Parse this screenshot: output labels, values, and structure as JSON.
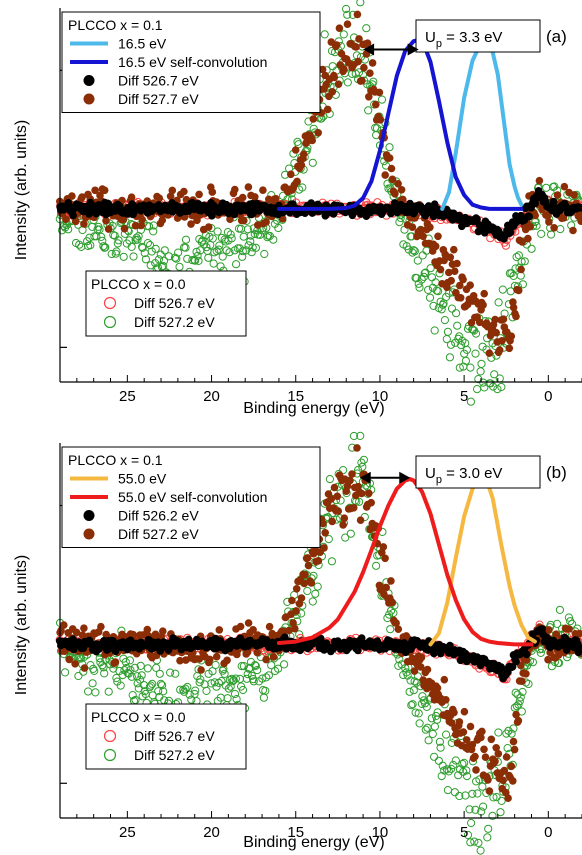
{
  "chart_data": [
    {
      "type": "line",
      "panel_label": "(a)",
      "xlabel": "Binding energy (eV)",
      "ylabel": "Intensity (arb. units)",
      "x_reversed": true,
      "xlim": [
        29,
        -2
      ],
      "ylim": [
        -1.25,
        1.45
      ],
      "x_ticks": [
        25,
        20,
        15,
        10,
        5,
        0
      ],
      "x_tick_labels": [
        "25",
        "20",
        "15",
        "10",
        "5",
        "0"
      ],
      "annotation": {
        "text": "U",
        "subscript": "p",
        "rest": " = 3.3 eV",
        "arrow_from_x": 11.0,
        "arrow_to_x": 7.7,
        "arrow_y": 1.15
      },
      "legend_top": {
        "title": "PLCCO x = 0.1",
        "entries": [
          {
            "label": "16.5 eV",
            "kind": "line",
            "color": "#4db8ea"
          },
          {
            "label": "16.5 eV self-convolution",
            "kind": "line",
            "color": "#1414d2"
          },
          {
            "label": "Diff 526.7 eV",
            "kind": "filled",
            "color": "#000000"
          },
          {
            "label": "Diff 527.7 eV",
            "kind": "filled",
            "color": "#8b2e06"
          }
        ]
      },
      "legend_bottom": {
        "title": "PLCCO x = 0.0",
        "entries": [
          {
            "label": "Diff 526.7 eV",
            "kind": "open",
            "color": "#ff4040"
          },
          {
            "label": "Diff 527.2 eV",
            "kind": "open",
            "color": "#2e9e2e"
          }
        ]
      },
      "series": [
        {
          "name": "16.5 eV",
          "kind": "line",
          "color": "#4db8ea",
          "x": [
            6.3,
            5.9,
            5.5,
            5.0,
            4.5,
            4.0,
            3.7,
            3.4,
            3.0,
            2.6,
            2.3,
            2.0,
            1.8,
            1.6
          ],
          "y": [
            0.0,
            0.12,
            0.4,
            0.8,
            1.07,
            1.2,
            1.22,
            1.18,
            0.97,
            0.6,
            0.32,
            0.16,
            0.08,
            0.03
          ]
        },
        {
          "name": "16.5 eV self-convolution",
          "kind": "line",
          "color": "#1414d2",
          "x": [
            16,
            14,
            13,
            12,
            11.5,
            11,
            10.5,
            10,
            9.5,
            9,
            8.5,
            8,
            7.7,
            7.4,
            7,
            6.5,
            6,
            5.5,
            5,
            4.5,
            4,
            3.5,
            3,
            2.5,
            2,
            1.6
          ],
          "y": [
            0,
            0,
            0,
            0.006,
            0.024,
            0.078,
            0.2,
            0.42,
            0.69,
            0.96,
            1.14,
            1.21,
            1.22,
            1.19,
            1.06,
            0.78,
            0.48,
            0.23,
            0.1,
            0.03,
            0.01,
            0,
            0,
            0,
            0,
            0
          ]
        },
        {
          "name": "Diff 526.7 eV",
          "kind": "filled",
          "color": "#000000",
          "noise": 0.03,
          "x": [
            29,
            25,
            20,
            15,
            12,
            10,
            8,
            6,
            5,
            4,
            3,
            2.6,
            2.2,
            1.8,
            1.2,
            0.8,
            0.5,
            0.2,
            0,
            -0.5,
            -1,
            -2
          ],
          "y": [
            0,
            0,
            0,
            0,
            0,
            0,
            0,
            -0.04,
            -0.08,
            -0.12,
            -0.17,
            -0.22,
            -0.15,
            -0.08,
            -0.02,
            0.05,
            0.12,
            0.05,
            0.02,
            0.01,
            0.01,
            0
          ]
        },
        {
          "name": "Diff 527.7 eV",
          "kind": "filled",
          "color": "#8b2e06",
          "noise": 0.09,
          "x": [
            29,
            25,
            20,
            18,
            17,
            16,
            15.5,
            15,
            14,
            13,
            12,
            11.3,
            11,
            10.5,
            10,
            9.5,
            9,
            8.5,
            8,
            7,
            6,
            5,
            4,
            3.5,
            3,
            2.5,
            2,
            1.7,
            1.4,
            1.0,
            0.5,
            0,
            -1,
            -2
          ],
          "y": [
            0,
            0,
            0,
            0,
            0,
            0.03,
            0.1,
            0.26,
            0.62,
            0.92,
            1.13,
            1.17,
            1.1,
            0.9,
            0.6,
            0.32,
            0.12,
            0.0,
            -0.08,
            -0.22,
            -0.42,
            -0.62,
            -0.72,
            -0.8,
            -0.88,
            -0.95,
            -0.8,
            -0.4,
            -0.15,
            -0.03,
            0.1,
            0.02,
            0.01,
            0
          ]
        },
        {
          "name": "Diff 526.7 eV (x = 0.0)",
          "kind": "open",
          "color": "#ff4040",
          "noise": 0.03,
          "x": [
            29,
            25,
            20,
            15,
            12,
            10,
            8,
            6,
            5,
            4,
            3,
            2.6,
            2.2,
            1.8,
            1.2,
            0.8,
            0.5,
            0.2,
            0,
            -0.5,
            -1,
            -2
          ],
          "y": [
            0,
            0,
            0,
            0,
            0,
            0,
            0,
            -0.05,
            -0.09,
            -0.13,
            -0.18,
            -0.23,
            -0.16,
            -0.09,
            -0.03,
            0.04,
            0.11,
            0.04,
            0.02,
            0.01,
            0.01,
            0
          ]
        },
        {
          "name": "Diff 527.2 eV (x = 0.0)",
          "kind": "open",
          "color": "#2e9e2e",
          "noise": 0.13,
          "x": [
            29,
            28,
            26,
            24,
            22.5,
            21,
            20,
            18.5,
            17,
            16,
            15.5,
            15,
            14,
            13,
            12,
            11.3,
            11,
            10.5,
            10,
            9.5,
            9,
            8,
            7,
            6,
            5,
            4.5,
            4,
            3.5,
            3,
            2.5,
            2,
            1.6,
            1.2,
            0.8,
            0.4,
            0,
            -1,
            -2
          ],
          "y": [
            0,
            -0.1,
            -0.15,
            -0.2,
            -0.45,
            -0.35,
            -0.25,
            -0.3,
            -0.18,
            -0.05,
            0.06,
            0.22,
            0.6,
            0.92,
            1.15,
            1.2,
            1.14,
            0.92,
            0.6,
            0.3,
            0.05,
            -0.35,
            -0.55,
            -0.75,
            -0.95,
            -1.05,
            -1.12,
            -1.08,
            -0.98,
            -0.85,
            -0.5,
            -0.3,
            -0.12,
            -0.02,
            0.1,
            0.02,
            0.01,
            0
          ]
        }
      ]
    },
    {
      "type": "line",
      "panel_label": "(b)",
      "xlabel": "Binding energy (eV)",
      "ylabel": "Intensity (arb. units)",
      "x_reversed": true,
      "xlim": [
        29,
        -2
      ],
      "ylim": [
        -1.25,
        1.45
      ],
      "x_ticks": [
        25,
        20,
        15,
        10,
        5,
        0
      ],
      "x_tick_labels": [
        "25",
        "20",
        "15",
        "10",
        "5",
        "0"
      ],
      "annotation": {
        "text": "U",
        "subscript": "p",
        "rest": " = 3.0 eV",
        "arrow_from_x": 11.2,
        "arrow_to_x": 8.2,
        "arrow_y": 1.2
      },
      "legend_top": {
        "title": "PLCCO   x = 0.1",
        "entries": [
          {
            "label": "55.0 eV",
            "kind": "line",
            "color": "#f5b840"
          },
          {
            "label": "55.0 eV self-convolution",
            "kind": "line",
            "color": "#ee1c1c"
          },
          {
            "label": "Diff 526.2 eV",
            "kind": "filled",
            "color": "#000000"
          },
          {
            "label": "Diff 527.2 eV",
            "kind": "filled",
            "color": "#8b2e06"
          }
        ]
      },
      "legend_bottom": {
        "title": "PLCCO x = 0.0",
        "entries": [
          {
            "label": "Diff 526.7 eV",
            "kind": "open",
            "color": "#ff4040"
          },
          {
            "label": "Diff 527.2 eV",
            "kind": "open",
            "color": "#2e9e2e"
          }
        ]
      },
      "series": [
        {
          "name": "55.0 eV",
          "kind": "line",
          "color": "#f5b840",
          "x": [
            7.0,
            6.5,
            6.0,
            5.5,
            5.0,
            4.5,
            4.0,
            3.7,
            3.3,
            2.8,
            2.3,
            2.0,
            1.6,
            1.2,
            0.8
          ],
          "y": [
            0.0,
            0.08,
            0.3,
            0.62,
            0.92,
            1.12,
            1.2,
            1.2,
            1.05,
            0.72,
            0.42,
            0.28,
            0.14,
            0.05,
            0.02
          ]
        },
        {
          "name": "55.0 eV self-convolution",
          "kind": "line",
          "color": "#ee1c1c",
          "x": [
            16,
            15,
            14,
            13,
            12.5,
            12,
            11.5,
            11,
            10.5,
            10,
            9.5,
            9,
            8.5,
            8.2,
            8,
            7.5,
            7,
            6.5,
            6,
            5.5,
            5,
            4.5,
            4,
            3.5,
            3,
            2,
            1
          ],
          "y": [
            0.01,
            0.02,
            0.05,
            0.12,
            0.18,
            0.28,
            0.38,
            0.52,
            0.68,
            0.85,
            1.0,
            1.12,
            1.18,
            1.19,
            1.18,
            1.1,
            0.94,
            0.72,
            0.5,
            0.32,
            0.18,
            0.09,
            0.04,
            0.02,
            0.01,
            0,
            0
          ]
        },
        {
          "name": "Diff 526.2 eV",
          "kind": "filled",
          "color": "#000000",
          "noise": 0.03,
          "x": [
            29,
            25,
            20,
            15,
            12,
            10,
            8,
            6,
            5,
            4,
            3,
            2.6,
            2.2,
            1.8,
            1.2,
            0.8,
            0.5,
            0.2,
            0,
            -0.5,
            -1,
            -2
          ],
          "y": [
            0,
            0,
            0,
            0,
            0,
            0,
            0,
            -0.04,
            -0.08,
            -0.12,
            -0.17,
            -0.22,
            -0.15,
            -0.08,
            -0.02,
            0.05,
            0.12,
            0.05,
            0.02,
            0.01,
            0.01,
            0
          ]
        },
        {
          "name": "Diff 527.2 eV",
          "kind": "filled",
          "color": "#8b2e06",
          "noise": 0.09,
          "x": [
            29,
            25,
            20,
            18,
            17,
            16,
            15.5,
            15,
            14,
            13,
            12,
            11.3,
            11,
            10.5,
            10,
            9.5,
            9,
            8.5,
            8,
            7,
            6,
            5,
            4,
            3.5,
            3,
            2.5,
            2,
            1.7,
            1.4,
            1.0,
            0.5,
            0,
            -1,
            -2
          ],
          "y": [
            0,
            0,
            -0.05,
            0,
            0,
            0.03,
            0.1,
            0.28,
            0.62,
            0.92,
            1.1,
            1.15,
            1.1,
            0.92,
            0.62,
            0.34,
            0.14,
            0.0,
            -0.1,
            -0.25,
            -0.45,
            -0.65,
            -0.75,
            -0.82,
            -0.88,
            -0.98,
            -0.8,
            -0.4,
            -0.15,
            -0.03,
            0.1,
            0.02,
            0.01,
            0
          ]
        },
        {
          "name": "Diff 526.7 eV (x = 0.0)",
          "kind": "open",
          "color": "#ff4040",
          "noise": 0.03,
          "x": [
            29,
            25,
            20,
            15,
            12,
            10,
            8,
            6,
            5,
            4,
            3,
            2.6,
            2.2,
            1.8,
            1.2,
            0.8,
            0.5,
            0.2,
            0,
            -0.5,
            -1,
            -2
          ],
          "y": [
            0,
            0,
            0,
            0,
            0,
            0,
            0,
            -0.05,
            -0.09,
            -0.13,
            -0.18,
            -0.23,
            -0.16,
            -0.09,
            -0.03,
            0.04,
            0.11,
            0.04,
            0.02,
            0.01,
            0.01,
            0
          ]
        },
        {
          "name": "Diff 527.2 eV (x = 0.0)",
          "kind": "open",
          "color": "#2e9e2e",
          "noise": 0.13,
          "x": [
            29,
            28,
            26,
            24,
            22.5,
            21,
            20,
            18.5,
            17,
            16,
            15.5,
            15,
            14,
            13,
            12,
            11.3,
            11,
            10.5,
            10,
            9.5,
            9,
            8,
            7,
            6,
            5,
            4.5,
            4,
            3.5,
            3,
            2.5,
            2,
            1.6,
            1.2,
            0.8,
            0.4,
            0,
            -1,
            -2
          ],
          "y": [
            0,
            -0.1,
            -0.15,
            -0.25,
            -0.5,
            -0.4,
            -0.3,
            -0.35,
            -0.2,
            -0.05,
            0.06,
            0.22,
            0.6,
            0.92,
            1.12,
            1.17,
            1.12,
            0.92,
            0.62,
            0.32,
            0.05,
            -0.35,
            -0.58,
            -0.78,
            -0.98,
            -1.08,
            -1.15,
            -1.1,
            -1.0,
            -0.88,
            -0.52,
            -0.3,
            -0.12,
            -0.02,
            0.1,
            0.02,
            0.01,
            0
          ]
        }
      ]
    }
  ]
}
